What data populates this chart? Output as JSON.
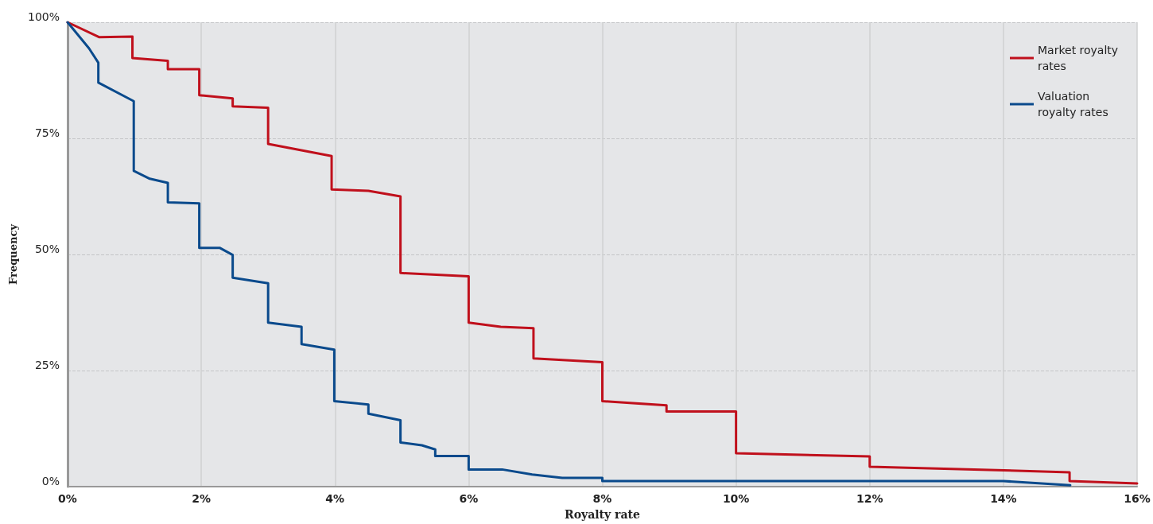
{
  "chart_data": {
    "type": "line",
    "xlabel": "Royalty rate",
    "ylabel": "Frequency",
    "legend": "top right",
    "grid": true,
    "marker": "none",
    "line_style": "solid",
    "xlim": [
      0,
      16
    ],
    "xticks": [
      {
        "value": 0,
        "label": "0%"
      },
      {
        "value": 2,
        "label": "2%"
      },
      {
        "value": 4,
        "label": "4%"
      },
      {
        "value": 6,
        "label": "6%"
      },
      {
        "value": 8,
        "label": "8%"
      },
      {
        "value": 10,
        "label": "10%"
      },
      {
        "value": 12,
        "label": "12%"
      },
      {
        "value": 14,
        "label": "14%"
      },
      {
        "value": 16,
        "label": "16%"
      }
    ],
    "ylim": [
      0,
      100
    ],
    "yticks": [
      {
        "value": 0,
        "label": "0%"
      },
      {
        "value": 25,
        "label": "25%"
      },
      {
        "value": 50,
        "label": "50%"
      },
      {
        "value": 75,
        "label": "75%"
      },
      {
        "value": 100,
        "label": "100%"
      }
    ],
    "series": [
      {
        "name": "Market royalty rates",
        "color": "#c0101c",
        "x": [
          0,
          0.47,
          0.97,
          0.97,
          1.5,
          1.5,
          1.97,
          1.97,
          2.47,
          2.47,
          3.0,
          3.0,
          3.95,
          3.95,
          4.5,
          4.98,
          4.98,
          6.0,
          6.0,
          6.48,
          6.97,
          6.97,
          8.0,
          8.0,
          8.96,
          8.96,
          10.0,
          10.0,
          12.0,
          12.0,
          14.99,
          14.99,
          16
        ],
        "values": [
          100,
          96.8,
          96.9,
          92.3,
          91.7,
          89.9,
          89.9,
          84.3,
          83.6,
          81.9,
          81.6,
          73.8,
          71.2,
          64.0,
          63.7,
          62.5,
          46.0,
          45.3,
          35.3,
          34.4,
          34.1,
          27.6,
          26.8,
          18.4,
          17.5,
          16.2,
          16.2,
          7.2,
          6.5,
          4.3,
          3.1,
          1.2,
          0.7
        ]
      },
      {
        "name": "Valuation royalty rates",
        "color": "#0a4a8c",
        "x": [
          0,
          0.32,
          0.46,
          0.46,
          0.99,
          0.99,
          1.23,
          1.5,
          1.5,
          1.97,
          1.97,
          2.28,
          2.47,
          2.47,
          3.0,
          3.0,
          3.5,
          3.5,
          3.99,
          3.99,
          4.5,
          4.5,
          4.98,
          4.98,
          5.3,
          5.5,
          5.5,
          6.0,
          6.0,
          6.5,
          6.95,
          7.4,
          8.0,
          8.0,
          14.0,
          15.0
        ],
        "values": [
          100,
          94.4,
          91.3,
          87.0,
          83.0,
          68.0,
          66.3,
          65.4,
          61.2,
          61.0,
          51.4,
          51.4,
          49.9,
          45.0,
          43.8,
          35.3,
          34.4,
          30.7,
          29.5,
          18.4,
          17.7,
          15.7,
          14.3,
          9.5,
          8.9,
          8.0,
          6.6,
          6.6,
          3.7,
          3.7,
          2.6,
          1.9,
          1.9,
          1.2,
          1.2,
          0.3
        ]
      }
    ]
  }
}
